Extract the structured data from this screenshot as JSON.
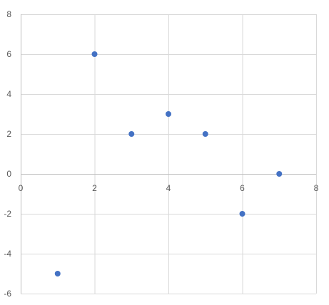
{
  "chart_data": {
    "type": "scatter",
    "title": "",
    "xlabel": "",
    "ylabel": "",
    "xlim": [
      0,
      8
    ],
    "ylim": [
      -6,
      8
    ],
    "x_ticks": [
      0,
      2,
      4,
      6,
      8
    ],
    "y_ticks": [
      -6,
      -4,
      -2,
      0,
      2,
      4,
      6,
      8
    ],
    "x_tick_labels": [
      "0",
      "2",
      "4",
      "6",
      "8"
    ],
    "y_tick_labels": [
      "-6",
      "-4",
      "-2",
      "0",
      "2",
      "4",
      "6",
      "8"
    ],
    "grid": true,
    "legend": "none",
    "series": [
      {
        "color": "#4472c4",
        "x": [
          1,
          2,
          3,
          4,
          5,
          6,
          7
        ],
        "y": [
          -5,
          6,
          2,
          3,
          2,
          -2,
          0
        ]
      }
    ]
  }
}
